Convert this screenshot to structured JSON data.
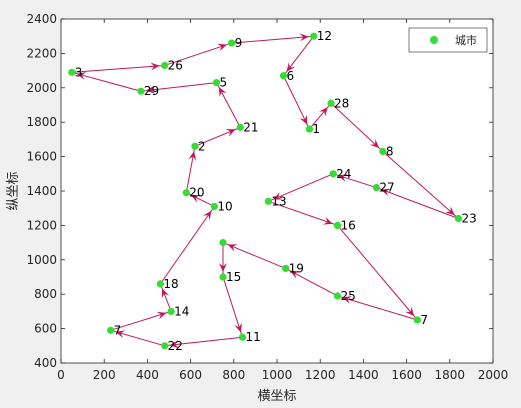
{
  "chart_data": {
    "type": "scatter",
    "title": "",
    "xlabel": "横坐标",
    "ylabel": "纵坐标",
    "xlim": [
      0,
      2000
    ],
    "ylim": [
      400,
      2400
    ],
    "xticks": [
      0,
      200,
      400,
      600,
      800,
      1000,
      1200,
      1400,
      1600,
      1800,
      2000
    ],
    "yticks": [
      400,
      600,
      800,
      1000,
      1200,
      1400,
      1600,
      1800,
      2000,
      2200,
      2400
    ],
    "grid": false,
    "legend": {
      "position": "top-right",
      "entries": [
        "城市"
      ]
    },
    "colors": {
      "point": "#33dd33",
      "route": "#c2185b"
    },
    "points": [
      {
        "label": "1",
        "x": 1150,
        "y": 1760
      },
      {
        "label": "2",
        "x": 620,
        "y": 1660
      },
      {
        "label": "3",
        "x": 50,
        "y": 2090
      },
      {
        "label": "5",
        "x": 720,
        "y": 2030
      },
      {
        "label": "6",
        "x": 1030,
        "y": 2070
      },
      {
        "label": "7",
        "x": 1650,
        "y": 650
      },
      {
        "label": "7",
        "x": 230,
        "y": 590
      },
      {
        "label": "8",
        "x": 1490,
        "y": 1630
      },
      {
        "label": "9",
        "x": 790,
        "y": 2260
      },
      {
        "label": "10",
        "x": 710,
        "y": 1310
      },
      {
        "label": "11",
        "x": 840,
        "y": 550
      },
      {
        "label": "12",
        "x": 1170,
        "y": 2300
      },
      {
        "label": "13",
        "x": 960,
        "y": 1340
      },
      {
        "label": "14",
        "x": 510,
        "y": 700
      },
      {
        "label": "15",
        "x": 750,
        "y": 900
      },
      {
        "label": "16",
        "x": 1280,
        "y": 1200
      },
      {
        "label": "18",
        "x": 460,
        "y": 860
      },
      {
        "label": "19",
        "x": 1040,
        "y": 950
      },
      {
        "label": "20",
        "x": 580,
        "y": 1390
      },
      {
        "label": "21",
        "x": 830,
        "y": 1770
      },
      {
        "label": "22",
        "x": 480,
        "y": 500
      },
      {
        "label": "23",
        "x": 1840,
        "y": 1240
      },
      {
        "label": "24",
        "x": 1260,
        "y": 1500
      },
      {
        "label": "25",
        "x": 1280,
        "y": 790
      },
      {
        "label": "26",
        "x": 480,
        "y": 2130
      },
      {
        "label": "27",
        "x": 1460,
        "y": 1420
      },
      {
        "label": "28",
        "x": 1250,
        "y": 1910
      },
      {
        "label": "29",
        "x": 370,
        "y": 1980
      },
      {
        "label": "",
        "x": 750,
        "y": 1100
      }
    ],
    "route": [
      [
        750,
        1100
      ],
      [
        750,
        900
      ],
      [
        840,
        550
      ],
      [
        480,
        500
      ],
      [
        230,
        590
      ],
      [
        510,
        700
      ],
      [
        460,
        860
      ],
      [
        710,
        1310
      ],
      [
        580,
        1390
      ],
      [
        620,
        1660
      ],
      [
        830,
        1770
      ],
      [
        720,
        2030
      ],
      [
        370,
        1980
      ],
      [
        50,
        2090
      ],
      [
        480,
        2130
      ],
      [
        790,
        2260
      ],
      [
        1170,
        2300
      ],
      [
        1030,
        2070
      ],
      [
        1150,
        1760
      ],
      [
        1250,
        1910
      ],
      [
        1490,
        1630
      ],
      [
        1840,
        1240
      ],
      [
        1460,
        1420
      ],
      [
        1260,
        1500
      ],
      [
        960,
        1340
      ],
      [
        1280,
        1200
      ],
      [
        1650,
        650
      ],
      [
        1280,
        790
      ],
      [
        1040,
        950
      ],
      [
        750,
        1100
      ]
    ]
  }
}
